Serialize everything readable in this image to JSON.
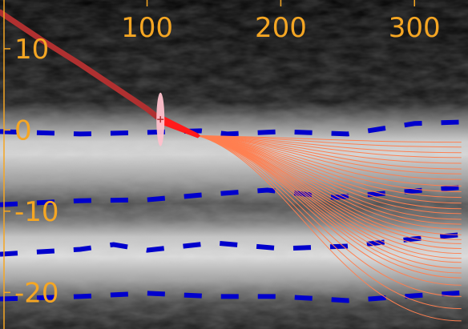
{
  "chart_data": {
    "type": "line",
    "title": "",
    "xlabel": "",
    "ylabel": "",
    "xlim": [
      -10,
      340
    ],
    "ylim": [
      -24.5,
      16
    ],
    "x_ticks": [
      "100",
      "200",
      "300"
    ],
    "y_ticks": [
      "10",
      "0",
      "-10",
      "-20"
    ],
    "x_tick_values": [
      100,
      200,
      300
    ],
    "y_tick_values": [
      10,
      0,
      -10,
      -20
    ],
    "colors": {
      "axis": "#f5a623",
      "background": "#000000",
      "measured_path": "#b03030",
      "fit_segment": "#ff1a1a",
      "marker": "#ffc0cb",
      "guide_lines": "#0000cc",
      "projections": "#ff7f50"
    },
    "grid": false,
    "legend": "none",
    "measured_path": {
      "x": [
        -10,
        20,
        50,
        80,
        100,
        110
      ],
      "y": [
        14.5,
        11.2,
        8.1,
        4.8,
        2.6,
        1.3
      ]
    },
    "fit_segment": {
      "x": [
        110,
        138
      ],
      "y": [
        1.3,
        -0.7
      ]
    },
    "marker": {
      "x": 110,
      "y": 1.3,
      "half_height": 3.3
    },
    "projection_origin": {
      "x": 138,
      "y": -0.7
    },
    "projection_end_x": 335,
    "projection_end_y": [
      -1.5,
      -2.1,
      -2.8,
      -3.4,
      -4.1,
      -4.8,
      -5.4,
      -6.1,
      -6.9,
      -7.6,
      -8.3,
      -9.0,
      -9.7,
      -10.3,
      -11.0,
      -11.6,
      -12.2,
      -12.9,
      -13.5,
      -14.0,
      -14.6,
      -15.2,
      -15.8,
      -16.3,
      -17.0,
      -17.6,
      -18.2,
      -19.1,
      -20.5,
      -22.0,
      -23.5
    ],
    "guide_lines": [
      {
        "x": [
          -10,
          50,
          100,
          140,
          160,
          200,
          250,
          300,
          340
        ],
        "y": [
          -0.2,
          -0.5,
          -0.3,
          -0.1,
          -0.5,
          -0.2,
          -0.5,
          0.8,
          1.0
        ]
      },
      {
        "x": [
          -10,
          50,
          100,
          140,
          190,
          240,
          300,
          340
        ],
        "y": [
          -9.2,
          -8.7,
          -8.6,
          -8.0,
          -7.4,
          -8.3,
          -7.5,
          -7.0
        ]
      },
      {
        "x": [
          -10,
          50,
          75,
          100,
          150,
          200,
          250,
          300,
          340
        ],
        "y": [
          -15.3,
          -14.7,
          -14.1,
          -14.8,
          -13.9,
          -14.6,
          -14.3,
          -13.4,
          -12.8
        ]
      },
      {
        "x": [
          -10,
          50,
          100,
          150,
          200,
          250,
          300,
          340
        ],
        "y": [
          -20.8,
          -20.5,
          -20.1,
          -20.5,
          -20.5,
          -21.0,
          -20.4,
          -20.0
        ]
      }
    ]
  }
}
